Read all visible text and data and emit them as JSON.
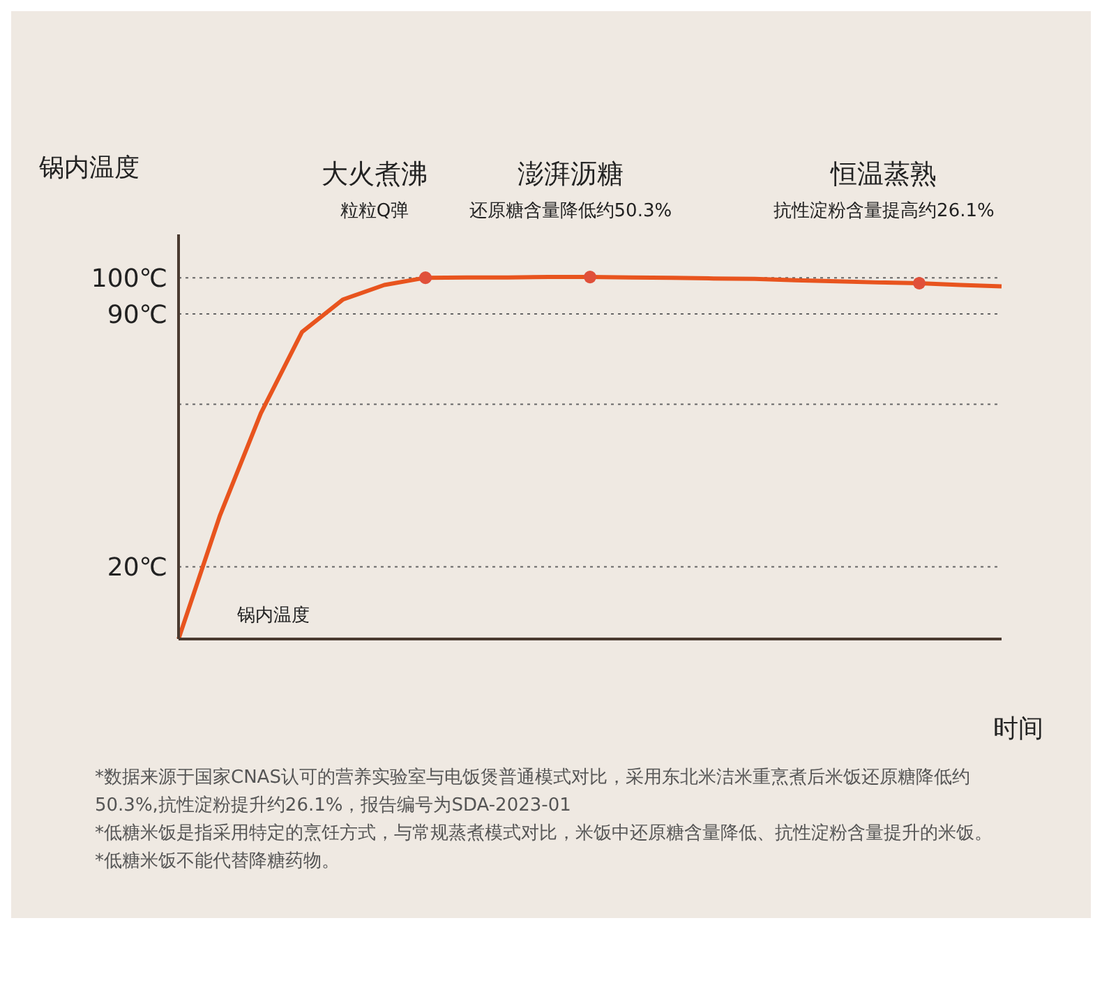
{
  "chart_data": {
    "type": "line",
    "xlabel": "时间",
    "ylabel": "锅内温度",
    "categories": [
      null,
      null,
      null,
      null,
      null,
      null,
      null,
      null,
      null,
      null,
      null,
      null,
      null,
      null,
      null,
      null,
      null,
      null,
      null,
      null,
      null
    ],
    "ylim": [
      0,
      112
    ],
    "yticks": [
      {
        "value": 20,
        "label": "20℃"
      },
      {
        "value": 65,
        "label": null
      },
      {
        "value": 90,
        "label": "90℃"
      },
      {
        "value": 100,
        "label": "100℃"
      }
    ],
    "tick_labels": "y",
    "grid": "y",
    "legend": false,
    "series": [
      {
        "color": "#e8541e",
        "values": [
          0,
          34,
          62.5,
          85,
          94,
          98,
          100,
          100.1,
          100.1,
          100.2,
          100.2,
          100.1,
          100,
          99.8,
          99.7,
          99.3,
          99,
          98.7,
          98.5,
          98,
          97.6
        ]
      },
      {
        "type": "scatter",
        "color": "#e0503a",
        "marker": "circle",
        "values": [
          null,
          null,
          null,
          null,
          null,
          null,
          100,
          null,
          null,
          null,
          100.2,
          null,
          null,
          null,
          null,
          null,
          null,
          null,
          98.5,
          null,
          null
        ]
      }
    ],
    "annotations": [
      "大火煮沸",
      "粒粒Q弹",
      "澎湃沥糖",
      "还原糖含量降低约50.3%",
      "恒温蒸熟",
      "抗性淀粉含量提高约26.1%",
      "锅内温度",
      "*数据来源于国家CNAS认可的营养实验室与电饭煲普通模式对比，采用东北米洁米重烹煮后米饭还原糖降低约50.3%,抗性淀粉提升约26.1%，报告编号为SDA-2023-01",
      "*低糖米饭是指采用特定的烹饪方式，与常规蒸煮模式对比，米饭中还原糖含量降低、抗性淀粉含量提升的米饭。",
      "*低糖米饭不能代替降糖药物。"
    ]
  }
}
